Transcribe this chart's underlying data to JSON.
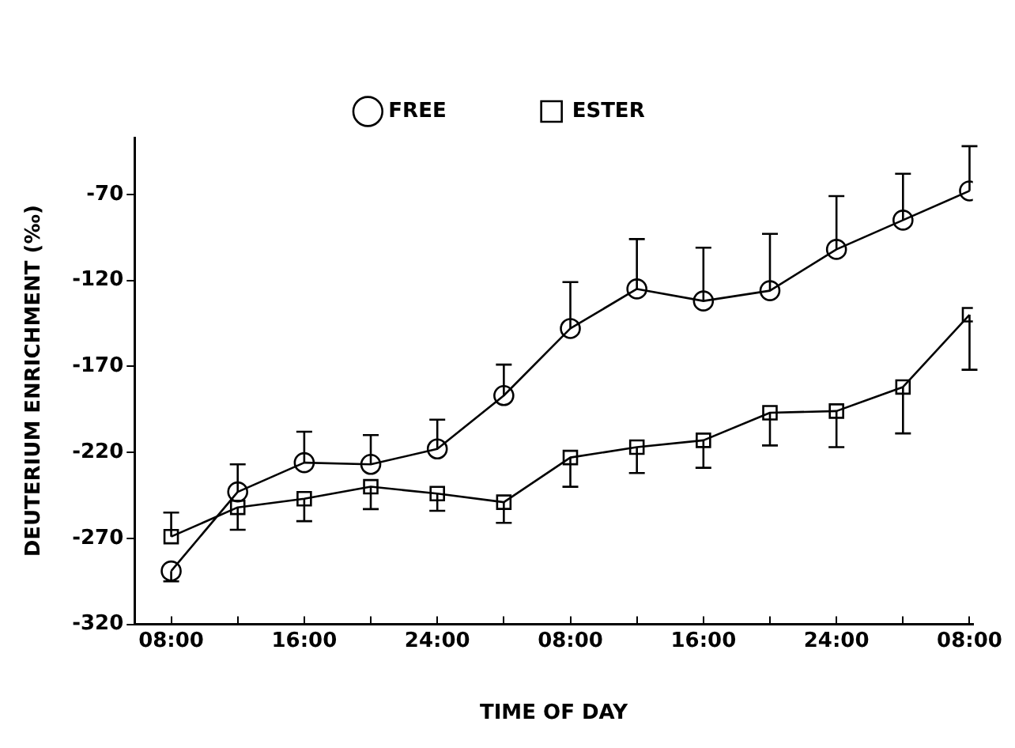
{
  "chart_data": {
    "type": "line",
    "xlabel": "TIME OF DAY",
    "ylabel": "DEUTERIUM ENRICHMENT (‰)",
    "categories": [
      "08:00",
      null,
      "16:00",
      null,
      "24:00",
      null,
      "08:00",
      null,
      "16:00",
      null,
      "24:00",
      null,
      "08:00"
    ],
    "series": [
      {
        "name": "FREE",
        "color": "#000000",
        "marker": "circle",
        "values": [
          -289,
          -243,
          -226,
          -227,
          -218,
          -187,
          -148,
          -125,
          -132,
          -126,
          -102,
          -85,
          -68
        ],
        "errors": [
          [
            -295,
            -289
          ],
          [
            -243,
            -227
          ],
          [
            -226,
            -208
          ],
          [
            -227,
            -210
          ],
          [
            -218,
            -201
          ],
          [
            -187,
            -169
          ],
          [
            -148,
            -121
          ],
          [
            -125,
            -96
          ],
          [
            -132,
            -101
          ],
          [
            -126,
            -93
          ],
          [
            -102,
            -71
          ],
          [
            -85,
            -58
          ],
          [
            -68,
            -42
          ]
        ]
      },
      {
        "name": "ESTER",
        "color": "#000000",
        "marker": "square",
        "values": [
          -269,
          -252,
          -247,
          -240,
          -244,
          -249,
          -223,
          -217,
          -213,
          -197,
          -196,
          -182,
          -140
        ],
        "errors": [
          [
            -269,
            -255
          ],
          [
            -265,
            -252
          ],
          [
            -260,
            -247
          ],
          [
            -253,
            -240
          ],
          [
            -254,
            -244
          ],
          [
            -261,
            -249
          ],
          [
            -240,
            -223
          ],
          [
            -232,
            -217
          ],
          [
            -229,
            -213
          ],
          [
            -216,
            -197
          ],
          [
            -217,
            -196
          ],
          [
            -209,
            -182
          ],
          [
            -172,
            -140
          ]
        ]
      }
    ],
    "ylim": [
      -320,
      -37
    ],
    "yticks": [
      -320,
      -270,
      -220,
      -170,
      -120,
      -70
    ],
    "grid": false,
    "legend": "top",
    "line_style": "solid"
  }
}
